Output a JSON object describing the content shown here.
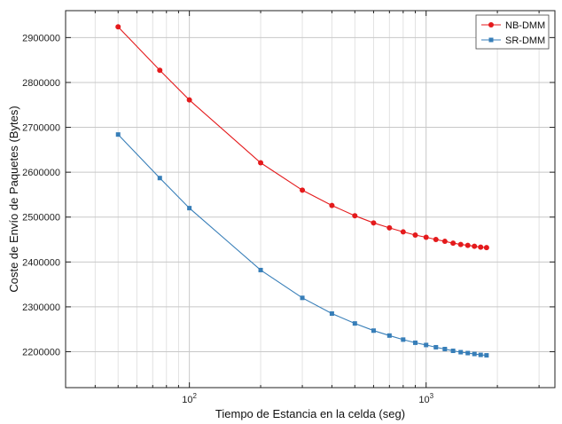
{
  "chart_data": {
    "type": "line",
    "title": "",
    "xlabel": "Tiempo de Estancia en la celda (seg)",
    "ylabel": "Coste de Envío de Paquetes (Bytes)",
    "xscale": "log",
    "xlim": [
      30,
      3500
    ],
    "ylim": [
      2120000,
      2960000
    ],
    "xticks": [
      {
        "value": 100,
        "label_base": "10",
        "label_exp": "2"
      },
      {
        "value": 1000,
        "label_base": "10",
        "label_exp": "3"
      }
    ],
    "yticks": [
      2200000,
      2300000,
      2400000,
      2500000,
      2600000,
      2700000,
      2800000,
      2900000
    ],
    "ytick_labels": [
      "2200000",
      "2300000",
      "2400000",
      "2500000",
      "2600000",
      "2700000",
      "2800000",
      "2900000"
    ],
    "grid": true,
    "legend_position": "top-right",
    "x": [
      50,
      75,
      100,
      200,
      300,
      400,
      500,
      600,
      700,
      800,
      900,
      1000,
      1100,
      1200,
      1300,
      1400,
      1500,
      1600,
      1700,
      1800
    ],
    "series": [
      {
        "name": "NB-DMM",
        "color": "#e41a1c",
        "marker": "circle",
        "values": [
          2924000,
          2827000,
          2761000,
          2621000,
          2560000,
          2526000,
          2503000,
          2487000,
          2476000,
          2467000,
          2460000,
          2455000,
          2450000,
          2446000,
          2442000,
          2439000,
          2437000,
          2435000,
          2433000,
          2432000
        ]
      },
      {
        "name": "SR-DMM",
        "color": "#377eb8",
        "marker": "square",
        "values": [
          2684000,
          2587000,
          2520000,
          2382000,
          2320000,
          2285000,
          2263000,
          2247000,
          2236000,
          2227000,
          2220000,
          2215000,
          2210000,
          2206000,
          2202000,
          2199000,
          2197000,
          2195000,
          2193000,
          2192000
        ]
      }
    ]
  }
}
